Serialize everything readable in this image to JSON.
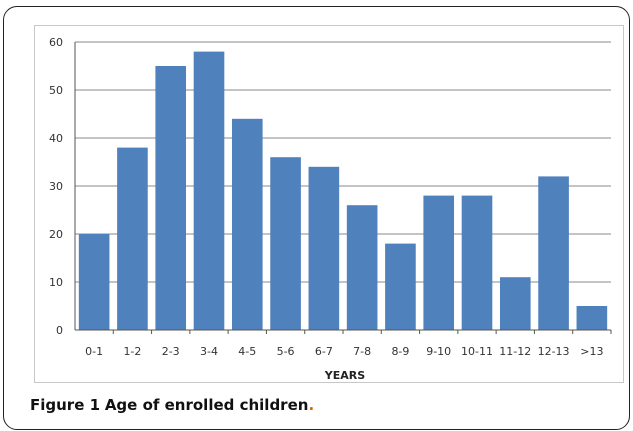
{
  "figure": {
    "label": "Figure 1",
    "caption": "Age of enrolled children",
    "caption_end": "."
  },
  "colors": {
    "bar": "#4f81bd",
    "grid": "#888888",
    "axis": "#555555"
  },
  "chart_data": {
    "type": "bar",
    "title": "",
    "xlabel": "YEARS",
    "ylabel": "",
    "ylim": [
      0,
      60
    ],
    "yticks": [
      0,
      10,
      20,
      30,
      40,
      50,
      60
    ],
    "grid": true,
    "legend": "none",
    "categories": [
      "0-1",
      "1-2",
      "2-3",
      "3-4",
      "4-5",
      "5-6",
      "6-7",
      "7-8",
      "8-9",
      "9-10",
      "10-11",
      "11-12",
      "12-13",
      ">13"
    ],
    "values": [
      20,
      38,
      55,
      58,
      44,
      36,
      34,
      26,
      18,
      28,
      28,
      11,
      32,
      5
    ]
  }
}
